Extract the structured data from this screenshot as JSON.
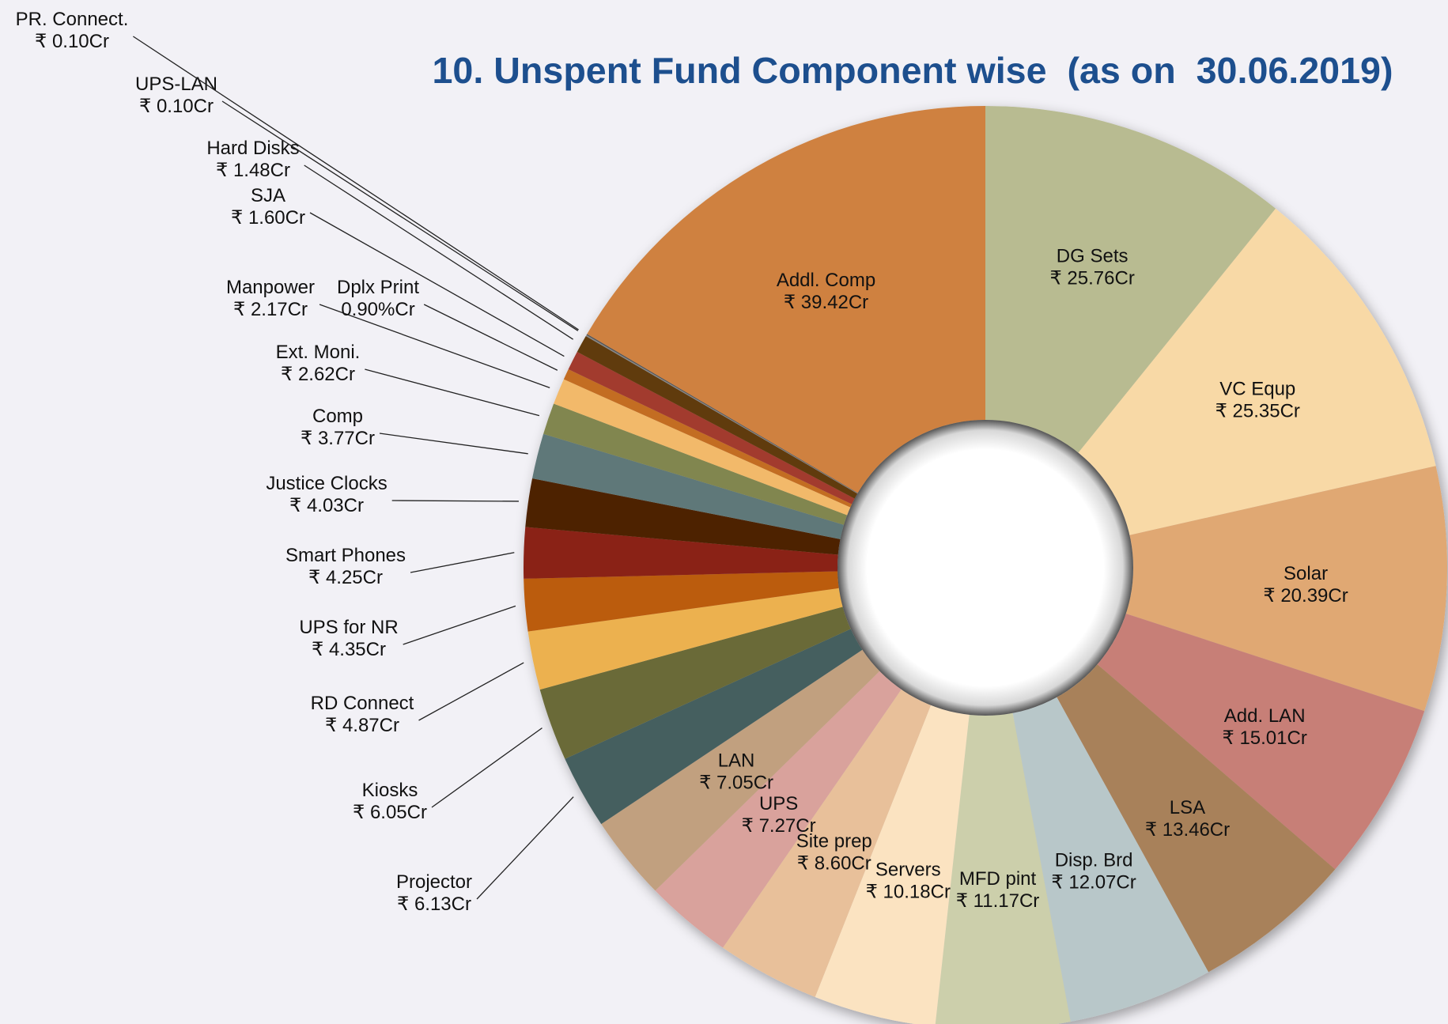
{
  "chart_data": {
    "type": "donut",
    "title": "10. Unspent Fund Component wise  (as on  30.06.2019)",
    "categories": [
      "DG Sets",
      "VC Equp",
      "Solar",
      "Add. LAN",
      "LSA",
      "Disp. Brd",
      "MFD pint",
      "Servers",
      "Site prep",
      "UPS",
      "LAN",
      "Projector",
      "Kiosks",
      "RD Connect",
      "UPS for NR",
      "Smart Phones",
      "Justice Clocks",
      "Comp",
      "Ext. Moni.",
      "Manpower",
      "Dplx Print",
      "SJA",
      "Hard Disks",
      "UPS-LAN",
      "PR. Connect.",
      "Addl. Comp"
    ],
    "values": [
      25.76,
      25.35,
      20.39,
      15.01,
      13.46,
      12.07,
      11.17,
      10.18,
      8.6,
      7.27,
      7.05,
      6.13,
      6.05,
      4.87,
      4.35,
      4.25,
      4.03,
      3.77,
      2.62,
      2.17,
      0.9,
      1.6,
      1.48,
      0.1,
      0.1,
      39.42
    ],
    "value_labels": [
      "₹ 25.76Cr",
      "₹ 25.35Cr",
      "₹ 20.39Cr",
      "₹ 15.01Cr",
      "₹ 13.46Cr",
      "₹ 12.07Cr",
      "₹ 11.17Cr",
      "₹ 10.18Cr",
      "₹ 8.60Cr",
      "₹ 7.27Cr",
      "₹ 7.05Cr",
      "₹ 6.13Cr",
      "₹ 6.05Cr",
      "₹ 4.87Cr",
      "₹ 4.35Cr",
      "₹ 4.25Cr",
      "₹ 4.03Cr",
      "₹ 3.77Cr",
      "₹ 2.62Cr",
      "₹ 2.17Cr",
      "0.90%Cr",
      "₹ 1.60Cr",
      "₹ 1.48Cr",
      "₹ 0.10Cr",
      "₹ 0.10Cr",
      "₹ 39.42Cr"
    ],
    "colors": [
      "#b8bb91",
      "#f8d9a6",
      "#e0a873",
      "#c77f77",
      "#a8815a",
      "#b8c7c9",
      "#cccfab",
      "#fbe3c1",
      "#e8c09a",
      "#d9a29c",
      "#c1a07f",
      "#455e5f",
      "#6b6b39",
      "#ecb14f",
      "#bb5b0e",
      "#8a2419",
      "#4e2400",
      "#5f7879",
      "#818650",
      "#f2b96a",
      "#c36d24",
      "#a23a2f",
      "#613a10",
      "#888888",
      "#555555",
      "#cf813f"
    ]
  }
}
